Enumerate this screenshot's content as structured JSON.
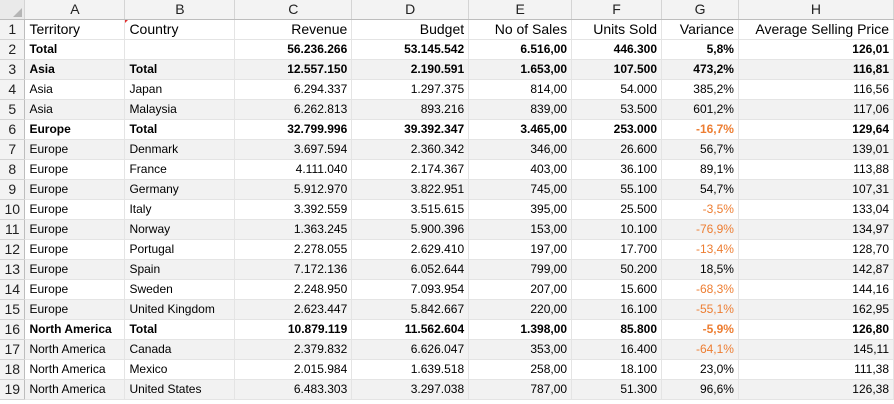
{
  "columns": [
    "A",
    "B",
    "C",
    "D",
    "E",
    "F",
    "G",
    "H"
  ],
  "headers": [
    "Territory",
    "Country",
    "Revenue",
    "Budget",
    "No of Sales",
    "Units Sold",
    "Variance",
    "Average Selling Price"
  ],
  "rows": [
    {
      "territory": "Total",
      "country": "",
      "revenue": "56.236.266",
      "budget": "53.145.542",
      "sales": "6.516,00",
      "units": "446.300",
      "variance": "5,8%",
      "asp": "126,01",
      "bold": true,
      "neg": false
    },
    {
      "territory": "Asia",
      "country": "Total",
      "revenue": "12.557.150",
      "budget": "2.190.591",
      "sales": "1.653,00",
      "units": "107.500",
      "variance": "473,2%",
      "asp": "116,81",
      "bold": true,
      "neg": false
    },
    {
      "territory": "Asia",
      "country": "Japan",
      "revenue": "6.294.337",
      "budget": "1.297.375",
      "sales": "814,00",
      "units": "54.000",
      "variance": "385,2%",
      "asp": "116,56",
      "bold": false,
      "neg": false
    },
    {
      "territory": "Asia",
      "country": "Malaysia",
      "revenue": "6.262.813",
      "budget": "893.216",
      "sales": "839,00",
      "units": "53.500",
      "variance": "601,2%",
      "asp": "117,06",
      "bold": false,
      "neg": false
    },
    {
      "territory": "Europe",
      "country": "Total",
      "revenue": "32.799.996",
      "budget": "39.392.347",
      "sales": "3.465,00",
      "units": "253.000",
      "variance": "-16,7%",
      "asp": "129,64",
      "bold": true,
      "neg": true
    },
    {
      "territory": "Europe",
      "country": "Denmark",
      "revenue": "3.697.594",
      "budget": "2.360.342",
      "sales": "346,00",
      "units": "26.600",
      "variance": "56,7%",
      "asp": "139,01",
      "bold": false,
      "neg": false
    },
    {
      "territory": "Europe",
      "country": "France",
      "revenue": "4.111.040",
      "budget": "2.174.367",
      "sales": "403,00",
      "units": "36.100",
      "variance": "89,1%",
      "asp": "113,88",
      "bold": false,
      "neg": false
    },
    {
      "territory": "Europe",
      "country": "Germany",
      "revenue": "5.912.970",
      "budget": "3.822.951",
      "sales": "745,00",
      "units": "55.100",
      "variance": "54,7%",
      "asp": "107,31",
      "bold": false,
      "neg": false
    },
    {
      "territory": "Europe",
      "country": "Italy",
      "revenue": "3.392.559",
      "budget": "3.515.615",
      "sales": "395,00",
      "units": "25.500",
      "variance": "-3,5%",
      "asp": "133,04",
      "bold": false,
      "neg": true
    },
    {
      "territory": "Europe",
      "country": "Norway",
      "revenue": "1.363.245",
      "budget": "5.900.396",
      "sales": "153,00",
      "units": "10.100",
      "variance": "-76,9%",
      "asp": "134,97",
      "bold": false,
      "neg": true
    },
    {
      "territory": "Europe",
      "country": "Portugal",
      "revenue": "2.278.055",
      "budget": "2.629.410",
      "sales": "197,00",
      "units": "17.700",
      "variance": "-13,4%",
      "asp": "128,70",
      "bold": false,
      "neg": true
    },
    {
      "territory": "Europe",
      "country": "Spain",
      "revenue": "7.172.136",
      "budget": "6.052.644",
      "sales": "799,00",
      "units": "50.200",
      "variance": "18,5%",
      "asp": "142,87",
      "bold": false,
      "neg": false
    },
    {
      "territory": "Europe",
      "country": "Sweden",
      "revenue": "2.248.950",
      "budget": "7.093.954",
      "sales": "207,00",
      "units": "15.600",
      "variance": "-68,3%",
      "asp": "144,16",
      "bold": false,
      "neg": true
    },
    {
      "territory": "Europe",
      "country": "United Kingdom",
      "revenue": "2.623.447",
      "budget": "5.842.667",
      "sales": "220,00",
      "units": "16.100",
      "variance": "-55,1%",
      "asp": "162,95",
      "bold": false,
      "neg": true
    },
    {
      "territory": "North America",
      "country": "Total",
      "revenue": "10.879.119",
      "budget": "11.562.604",
      "sales": "1.398,00",
      "units": "85.800",
      "variance": "-5,9%",
      "asp": "126,80",
      "bold": true,
      "neg": true
    },
    {
      "territory": "North America",
      "country": "Canada",
      "revenue": "2.379.832",
      "budget": "6.626.047",
      "sales": "353,00",
      "units": "16.400",
      "variance": "-64,1%",
      "asp": "145,11",
      "bold": false,
      "neg": true
    },
    {
      "territory": "North America",
      "country": "Mexico",
      "revenue": "2.015.984",
      "budget": "1.639.518",
      "sales": "258,00",
      "units": "18.100",
      "variance": "23,0%",
      "asp": "111,38",
      "bold": false,
      "neg": false
    },
    {
      "territory": "North America",
      "country": "United States",
      "revenue": "6.483.303",
      "budget": "3.297.038",
      "sales": "787,00",
      "units": "51.300",
      "variance": "96,6%",
      "asp": "126,38",
      "bold": false,
      "neg": false
    }
  ],
  "colors": {
    "negative": "#ed7d31",
    "comment_marker": "#e03030",
    "header_bg": "#f3f3f3",
    "zebra_bg": "#f2f2f2"
  }
}
